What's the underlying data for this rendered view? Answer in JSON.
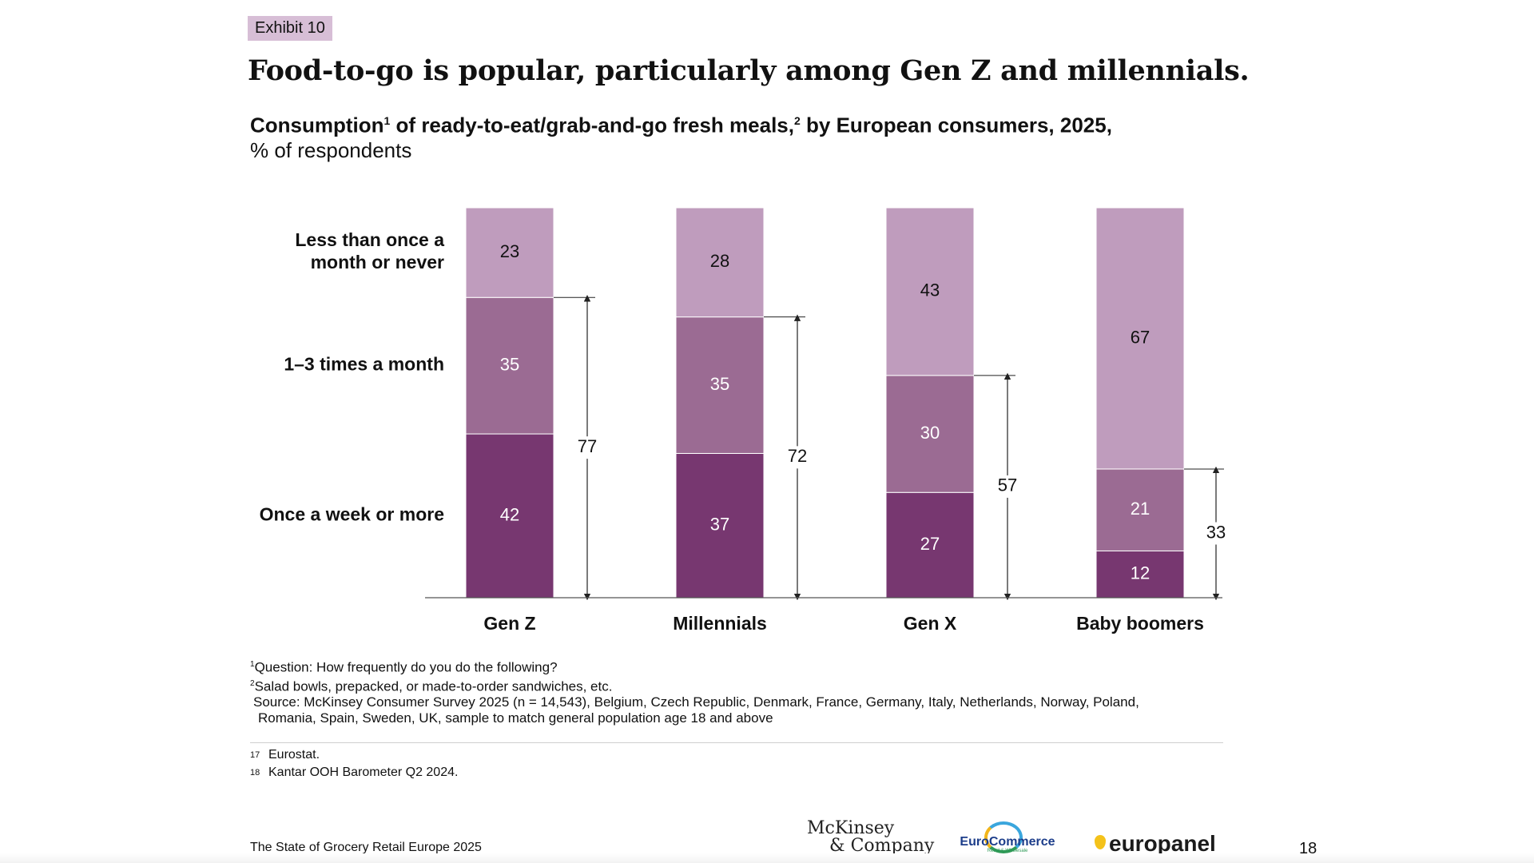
{
  "exhibit_label": "Exhibit 10",
  "title": "Food-to-go is popular, particularly among Gen Z and millennials.",
  "subtitle": {
    "part1": "Consumption",
    "sup1": "1",
    "part2": " of ready-to-eat/grab-and-go fresh meals,",
    "sup2": "2",
    "part3": " by European consumers, 2025,",
    "line2": "% of respondents"
  },
  "chart_data": {
    "type": "bar",
    "stacked": true,
    "normalized_to": 100,
    "categories": [
      "Gen Z",
      "Millennials",
      "Gen X",
      "Baby boomers"
    ],
    "series": [
      {
        "name": "Once a week or more",
        "values": [
          42,
          37,
          27,
          12
        ],
        "color": "#773770"
      },
      {
        "name": "1–3 times a month",
        "values": [
          35,
          35,
          30,
          21
        ],
        "color": "#9b6b93"
      },
      {
        "name": "Less than once a month or never",
        "values": [
          23,
          28,
          43,
          67
        ],
        "color": "#bf9cbd"
      }
    ],
    "series_label_lines": [
      [
        "Once a week or more"
      ],
      [
        "1–3 times a month"
      ],
      [
        "Less than once a",
        "month or never"
      ]
    ],
    "bracket_totals": [
      77,
      72,
      57,
      33
    ],
    "ylim": [
      0,
      100
    ]
  },
  "footnotes": {
    "note1_sup": "1",
    "note1": "Question: How frequently do you do the following?",
    "note2_sup": "2",
    "note2": "Salad bowls, prepacked, or made-to-order sandwiches, etc.",
    "source_line1": "Source: McKinsey Consumer Survey 2025 (n = 14,543), Belgium, Czech Republic, Denmark, France, Germany, Italy, Netherlands, Norway, Poland,",
    "source_line2": "Romania, Spain, Sweden, UK, sample to match general population age 18 and above"
  },
  "references": [
    {
      "num": "17",
      "text": "Eurostat."
    },
    {
      "num": "18",
      "text": "Kantar OOH Barometer Q2 2024."
    }
  ],
  "footer": {
    "report_title": "The State of Grocery Retail Europe 2025",
    "page_number": "18",
    "logo_mckinsey_line1": "McKinsey",
    "logo_mckinsey_line2": "& Company",
    "logo_eurocommerce": "EuroCommerce",
    "logo_eurocommerce_tagline": "Retail & Wholesale",
    "logo_europanel": "europanel"
  }
}
